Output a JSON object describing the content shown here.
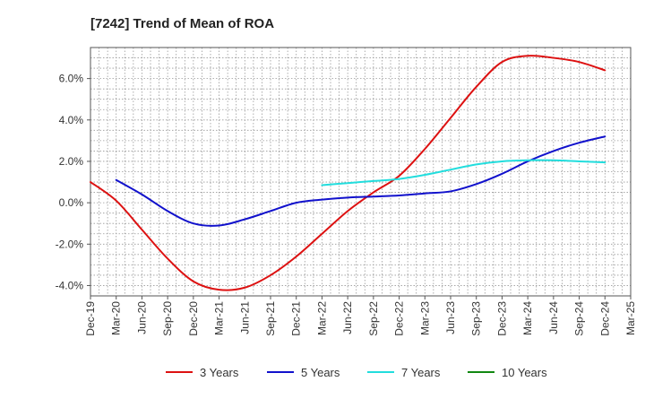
{
  "chart_data": {
    "type": "line",
    "title": "[7242]  Trend of Mean of ROA",
    "xlabel": "",
    "ylabel": "",
    "categories": [
      "Dec-19",
      "Mar-20",
      "Jun-20",
      "Sep-20",
      "Dec-20",
      "Mar-21",
      "Jun-21",
      "Sep-21",
      "Dec-21",
      "Mar-22",
      "Jun-22",
      "Sep-22",
      "Dec-22",
      "Mar-23",
      "Jun-23",
      "Sep-23",
      "Dec-23",
      "Mar-24",
      "Jun-24",
      "Sep-24",
      "Dec-24",
      "Mar-25"
    ],
    "ylim": [
      -4.5,
      7.5
    ],
    "yticks": [
      -4.0,
      -2.0,
      0.0,
      2.0,
      4.0,
      6.0
    ],
    "ytick_labels": [
      "-4.0%",
      "-2.0%",
      "0.0%",
      "2.0%",
      "4.0%",
      "6.0%"
    ],
    "grid": true,
    "legend_position": "bottom",
    "series": [
      {
        "name": "3 Years",
        "color": "#dd1111",
        "values": [
          1.0,
          0.1,
          -1.3,
          -2.7,
          -3.8,
          -4.2,
          -4.1,
          -3.5,
          -2.6,
          -1.5,
          -0.4,
          0.5,
          1.3,
          2.6,
          4.1,
          5.6,
          6.8,
          7.1,
          7.0,
          6.8,
          6.4,
          null
        ]
      },
      {
        "name": "5 Years",
        "color": "#1111cc",
        "values": [
          null,
          1.1,
          0.4,
          -0.4,
          -1.0,
          -1.1,
          -0.8,
          -0.4,
          0.0,
          0.15,
          0.25,
          0.3,
          0.35,
          0.45,
          0.55,
          0.9,
          1.4,
          2.0,
          2.5,
          2.9,
          3.2,
          null
        ]
      },
      {
        "name": "7 Years",
        "color": "#22dddd",
        "values": [
          null,
          null,
          null,
          null,
          null,
          null,
          null,
          null,
          null,
          0.85,
          0.95,
          1.05,
          1.15,
          1.35,
          1.6,
          1.85,
          2.0,
          2.05,
          2.05,
          2.0,
          1.95,
          null
        ]
      },
      {
        "name": "10 Years",
        "color": "#118811",
        "values": [
          null,
          null,
          null,
          null,
          null,
          null,
          null,
          null,
          null,
          null,
          null,
          null,
          null,
          null,
          null,
          null,
          null,
          null,
          null,
          null,
          null,
          null
        ]
      }
    ]
  }
}
